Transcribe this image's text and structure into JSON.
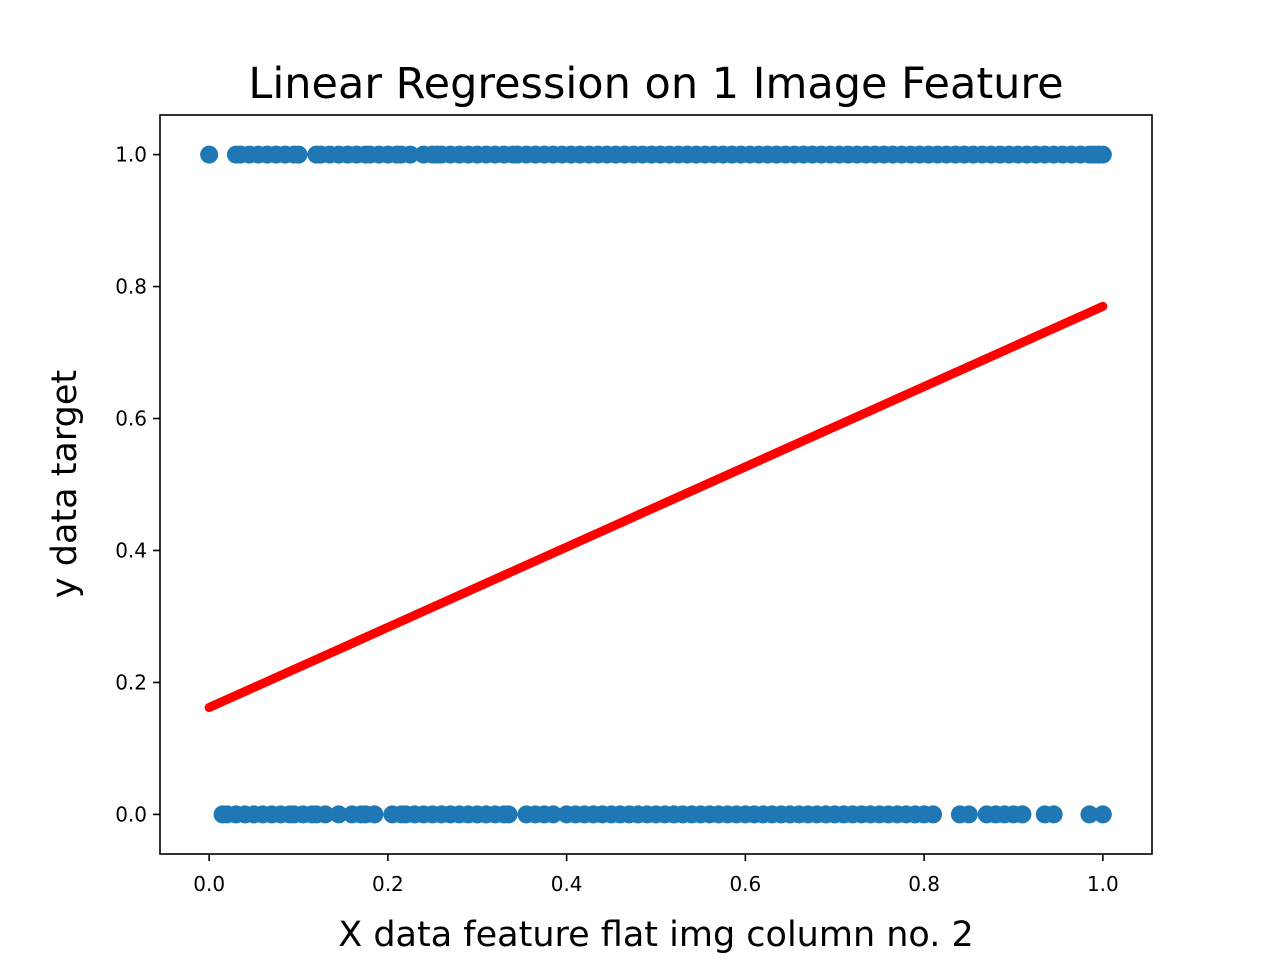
{
  "chart_data": {
    "type": "scatter",
    "title": "Linear Regression on 1 Image Feature",
    "xlabel": "X data feature flat img column no. 2",
    "ylabel": "y data target",
    "xlim": [
      -0.055,
      1.055
    ],
    "ylim": [
      -0.06,
      1.06
    ],
    "xticks": [
      0.0,
      0.2,
      0.4,
      0.6,
      0.8,
      1.0
    ],
    "xtick_labels": [
      "0.0",
      "0.2",
      "0.4",
      "0.6",
      "0.8",
      "1.0"
    ],
    "yticks": [
      0.0,
      0.2,
      0.4,
      0.6,
      0.8,
      1.0
    ],
    "ytick_labels": [
      "0.0",
      "0.2",
      "0.4",
      "0.6",
      "0.8",
      "1.0"
    ],
    "grid": false,
    "colors": {
      "points": "#1f77b4",
      "fit_line": "#ff0000"
    },
    "series": [
      {
        "kind": "scatter",
        "x": [
          0.0,
          0.03,
          0.035,
          0.045,
          0.055,
          0.065,
          0.075,
          0.085,
          0.095,
          0.1,
          0.12,
          0.125,
          0.135,
          0.145,
          0.155,
          0.165,
          0.175,
          0.18,
          0.19,
          0.2,
          0.21,
          0.215,
          0.225,
          0.24,
          0.25,
          0.255,
          0.26,
          0.27,
          0.28,
          0.29,
          0.3,
          0.31,
          0.32,
          0.33,
          0.34,
          0.345,
          0.355,
          0.365,
          0.375,
          0.385,
          0.395,
          0.405,
          0.415,
          0.425,
          0.435,
          0.445,
          0.455,
          0.465,
          0.475,
          0.485,
          0.495,
          0.505,
          0.515,
          0.525,
          0.535,
          0.545,
          0.555,
          0.565,
          0.575,
          0.585,
          0.595,
          0.605,
          0.615,
          0.625,
          0.635,
          0.645,
          0.655,
          0.665,
          0.675,
          0.685,
          0.695,
          0.705,
          0.715,
          0.725,
          0.735,
          0.745,
          0.755,
          0.765,
          0.775,
          0.785,
          0.795,
          0.805,
          0.815,
          0.825,
          0.835,
          0.845,
          0.855,
          0.865,
          0.875,
          0.885,
          0.895,
          0.905,
          0.915,
          0.925,
          0.935,
          0.945,
          0.955,
          0.965,
          0.975,
          0.985,
          0.99,
          0.995,
          1.0
        ],
        "y": [
          1,
          1,
          1,
          1,
          1,
          1,
          1,
          1,
          1,
          1,
          1,
          1,
          1,
          1,
          1,
          1,
          1,
          1,
          1,
          1,
          1,
          1,
          1,
          1,
          1,
          1,
          1,
          1,
          1,
          1,
          1,
          1,
          1,
          1,
          1,
          1,
          1,
          1,
          1,
          1,
          1,
          1,
          1,
          1,
          1,
          1,
          1,
          1,
          1,
          1,
          1,
          1,
          1,
          1,
          1,
          1,
          1,
          1,
          1,
          1,
          1,
          1,
          1,
          1,
          1,
          1,
          1,
          1,
          1,
          1,
          1,
          1,
          1,
          1,
          1,
          1,
          1,
          1,
          1,
          1,
          1,
          1,
          1,
          1,
          1,
          1,
          1,
          1,
          1,
          1,
          1,
          1,
          1,
          1,
          1,
          1,
          1,
          1,
          1,
          1,
          1,
          1,
          1
        ]
      },
      {
        "kind": "scatter",
        "x": [
          0.015,
          0.02,
          0.03,
          0.04,
          0.05,
          0.06,
          0.07,
          0.08,
          0.09,
          0.095,
          0.105,
          0.115,
          0.12,
          0.13,
          0.145,
          0.16,
          0.17,
          0.175,
          0.185,
          0.205,
          0.215,
          0.22,
          0.23,
          0.24,
          0.25,
          0.26,
          0.27,
          0.28,
          0.29,
          0.3,
          0.31,
          0.32,
          0.33,
          0.335,
          0.355,
          0.365,
          0.375,
          0.385,
          0.4,
          0.41,
          0.42,
          0.43,
          0.44,
          0.45,
          0.46,
          0.47,
          0.48,
          0.49,
          0.5,
          0.51,
          0.52,
          0.53,
          0.54,
          0.55,
          0.56,
          0.57,
          0.58,
          0.59,
          0.6,
          0.61,
          0.62,
          0.63,
          0.64,
          0.65,
          0.66,
          0.67,
          0.68,
          0.69,
          0.7,
          0.71,
          0.72,
          0.73,
          0.74,
          0.75,
          0.76,
          0.77,
          0.78,
          0.79,
          0.8,
          0.81,
          0.84,
          0.85,
          0.87,
          0.88,
          0.89,
          0.9,
          0.91,
          0.935,
          0.945,
          0.985,
          1.0
        ],
        "y": [
          0,
          0,
          0,
          0,
          0,
          0,
          0,
          0,
          0,
          0,
          0,
          0,
          0,
          0,
          0,
          0,
          0,
          0,
          0,
          0,
          0,
          0,
          0,
          0,
          0,
          0,
          0,
          0,
          0,
          0,
          0,
          0,
          0,
          0,
          0,
          0,
          0,
          0,
          0,
          0,
          0,
          0,
          0,
          0,
          0,
          0,
          0,
          0,
          0,
          0,
          0,
          0,
          0,
          0,
          0,
          0,
          0,
          0,
          0,
          0,
          0,
          0,
          0,
          0,
          0,
          0,
          0,
          0,
          0,
          0,
          0,
          0,
          0,
          0,
          0,
          0,
          0,
          0,
          0,
          0,
          0,
          0,
          0,
          0,
          0,
          0,
          0,
          0,
          0,
          0,
          0
        ]
      },
      {
        "kind": "line",
        "x": [
          0.0,
          1.0
        ],
        "y": [
          0.162,
          0.77
        ]
      }
    ]
  }
}
